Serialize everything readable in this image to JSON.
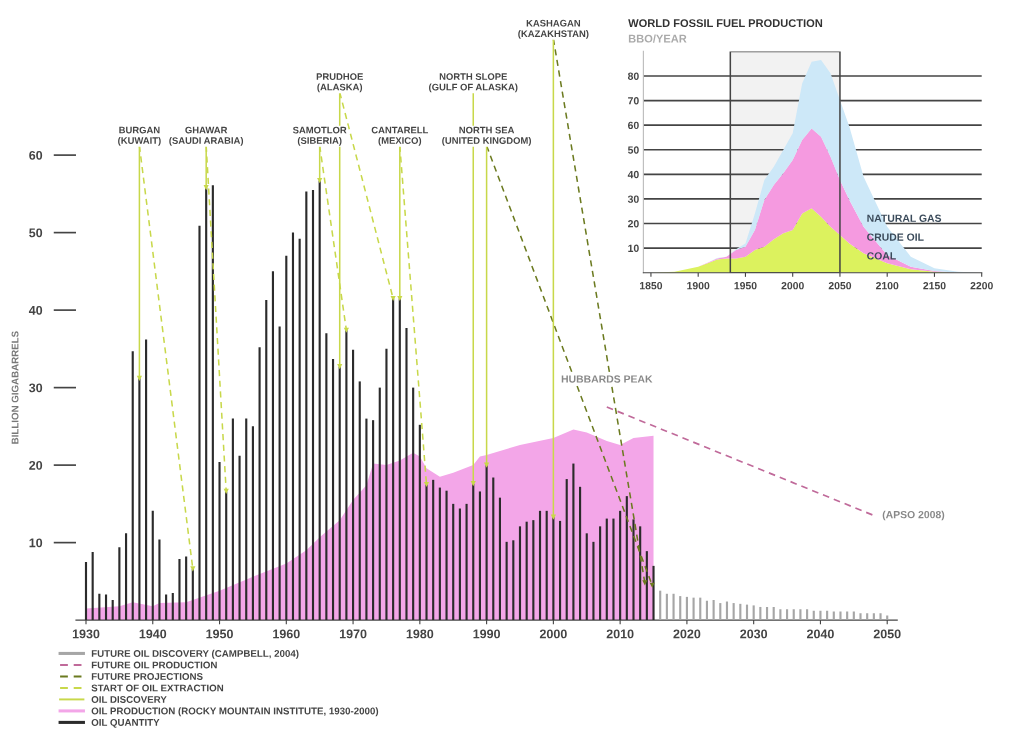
{
  "chart_data": [
    {
      "type": "bar",
      "ylabel": "BILLION GIGABARRELS",
      "xlim": [
        1928.5,
        2051.5
      ],
      "xticks": [
        1930,
        1940,
        1950,
        1960,
        1970,
        1980,
        1990,
        2000,
        2010,
        2020,
        2030,
        2040,
        2050
      ],
      "ylim": [
        0,
        60
      ],
      "yticks": [
        10,
        20,
        30,
        40,
        50,
        60
      ],
      "legend": "bottom left",
      "series": [
        {
          "name": "FUTURE OIL DISCOVERY (CAMPBELL, 2004)",
          "type": "bar",
          "color": "#a6a6a6",
          "x": [
            2016,
            2017,
            2018,
            2019,
            2020,
            2021,
            2022,
            2023,
            2024,
            2025,
            2026,
            2027,
            2028,
            2029,
            2030,
            2031,
            2032,
            2033,
            2034,
            2035,
            2036,
            2037,
            2038,
            2039,
            2040,
            2041,
            2042,
            2043,
            2044,
            2045,
            2046,
            2047,
            2048,
            2049,
            2050
          ],
          "values": [
            3.8,
            3.4,
            3.4,
            3.1,
            3.0,
            2.9,
            2.9,
            2.5,
            2.6,
            2.2,
            2.4,
            2.2,
            2.1,
            2.0,
            1.9,
            1.7,
            1.7,
            1.7,
            1.4,
            1.4,
            1.4,
            1.4,
            1.4,
            1.2,
            1.2,
            1.2,
            1.1,
            1.1,
            1.1,
            1.1,
            0.9,
            0.9,
            0.9,
            0.9,
            0.6
          ]
        },
        {
          "name": "FUTURE OIL PRODUCTION",
          "type": "line",
          "line_style": "dashed",
          "color": "#c06a9a",
          "x": [
            2008,
            2048
          ],
          "values": [
            27.5,
            13.5
          ]
        },
        {
          "name": "FUTURE PROJECTIONS",
          "type": "scatter",
          "marker": "triangle",
          "line_style": "dashed",
          "color": "#6b7a1f",
          "x": [
            2014.8,
            2013.7
          ],
          "values": [
            4.5,
            4.8
          ]
        },
        {
          "name": "START OF OIL EXTRACTION",
          "type": "scatter",
          "marker": "triangle",
          "line_style": "dashed",
          "color": "#c8d84a",
          "x": [
            1946,
            1951,
            1969,
            1976,
            1981
          ],
          "values": [
            6.6,
            16.6,
            37.4,
            41.5,
            17.5
          ]
        },
        {
          "name": "OIL DISCOVERY",
          "type": "scatter",
          "marker": "triangle",
          "line_style": "solid",
          "color": "#c8d84a",
          "x": [
            1938,
            1948,
            1965,
            1968,
            1977,
            1988,
            1990,
            2000
          ],
          "values": [
            31.2,
            55.8,
            56.7,
            32.7,
            41.5,
            17.6,
            20,
            13.3
          ]
        },
        {
          "name": "OIL PRODUCTION (ROCKY MOUNTAIN INSTITUTE, 1930-2000)",
          "type": "area",
          "color": "#f3a6e8",
          "x": [
            1930,
            1935,
            1937,
            1940,
            1941,
            1945,
            1950,
            1955,
            1960,
            1963,
            1965,
            1968,
            1970,
            1972,
            1973,
            1975,
            1977,
            1979,
            1980,
            1981,
            1983,
            1985,
            1988,
            1989,
            1990,
            1995,
            2000,
            2003,
            2005,
            2008,
            2010,
            2012,
            2015
          ],
          "values": [
            1.5,
            1.8,
            2.3,
            1.8,
            2.2,
            2.3,
            3.8,
            5.6,
            7.3,
            9,
            10.7,
            12.9,
            15.5,
            17.4,
            20.2,
            20,
            20.6,
            21.6,
            21.1,
            19.6,
            18.5,
            19,
            20,
            21.1,
            21.3,
            22.6,
            23.5,
            24.6,
            24.2,
            23.1,
            22.6,
            23.5,
            23.8
          ]
        },
        {
          "name": "OIL QUANTITY",
          "type": "bar",
          "color": "#2b2b2b",
          "x": [
            1930,
            1931,
            1932,
            1933,
            1934,
            1935,
            1936,
            1937,
            1938,
            1939,
            1940,
            1941,
            1942,
            1943,
            1944,
            1945,
            1946,
            1947,
            1948,
            1949,
            1950,
            1951,
            1952,
            1953,
            1954,
            1955,
            1956,
            1957,
            1958,
            1959,
            1960,
            1961,
            1962,
            1963,
            1964,
            1965,
            1966,
            1967,
            1968,
            1969,
            1970,
            1971,
            1972,
            1973,
            1974,
            1975,
            1976,
            1977,
            1978,
            1979,
            1980,
            1981,
            1982,
            1983,
            1984,
            1985,
            1986,
            1987,
            1988,
            1989,
            1990,
            1991,
            1992,
            1993,
            1994,
            1995,
            1996,
            1997,
            1998,
            1999,
            2000,
            2001,
            2002,
            2003,
            2004,
            2005,
            2006,
            2007,
            2008,
            2009,
            2010,
            2011,
            2012,
            2013,
            2014,
            2015
          ],
          "values": [
            7.5,
            8.8,
            3.4,
            3.3,
            2.6,
            9.4,
            11.2,
            34.7,
            31.2,
            36.2,
            14.1,
            10.4,
            3.3,
            3.5,
            7.9,
            8.2,
            6.6,
            50.9,
            55.8,
            56.1,
            20.4,
            16.6,
            26,
            21.2,
            26,
            25,
            35.2,
            41.3,
            45,
            37.9,
            47,
            50,
            49.2,
            55.3,
            55.5,
            56.7,
            37,
            33.7,
            32.7,
            37.4,
            34.9,
            30.8,
            26,
            25.8,
            30,
            35,
            41.5,
            41.5,
            37.7,
            30,
            25.2,
            17.5,
            18.1,
            17.1,
            16.7,
            15,
            14.4,
            15,
            17.6,
            16.6,
            20,
            18.4,
            15.8,
            10.1,
            10.3,
            12.1,
            12.7,
            12.9,
            14.1,
            14.1,
            13.3,
            12.8,
            18.2,
            20.2,
            17.2,
            11.2,
            10.1,
            12.1,
            13.1,
            13.1,
            14.1,
            16,
            13,
            12.1,
            8.9,
            7
          ]
        }
      ],
      "annotations": [
        {
          "text": "BURGAN\n(KUWAIT)",
          "x": 1938,
          "y": 31.2
        },
        {
          "text": "GHAWAR\n(SAUDI ARABIA)",
          "x": 1948,
          "y": 55.8
        },
        {
          "text": "SAMOTLOR\n(SIBERIA)",
          "x": 1965,
          "y": 56.7
        },
        {
          "text": "PRUDHOE\n(ALASKA)",
          "x": 1968,
          "y": 32.7
        },
        {
          "text": "CANTARELL\n(MEXICO)",
          "x": 1977,
          "y": 41.5
        },
        {
          "text": "NORTH SLOPE\n(GULF OF ALASKA)",
          "x": 1988,
          "y": 17.6
        },
        {
          "text": "NORTH SEA\n(UNITED KINGDOM)",
          "x": 1990,
          "y": 20
        },
        {
          "text": "KASHAGAN\n(KAZAKHSTAN)",
          "x": 2000,
          "y": 13.3
        },
        "HUBBARDS PEAK",
        "(APSO 2008)"
      ]
    },
    {
      "type": "area",
      "stacked": true,
      "title": "WORLD FOSSIL FUEL PRODUCTION",
      "subtitle": "BBO/YEAR",
      "xlim": [
        1842,
        2200
      ],
      "xticks": [
        1850,
        1900,
        1950,
        2000,
        2050,
        2100,
        2150,
        2200
      ],
      "ylim": [
        0,
        90
      ],
      "yticks": [
        10,
        20,
        30,
        40,
        50,
        60,
        70,
        80
      ],
      "grid": "y",
      "bands": [
        {
          "axis": "x",
          "from": 1934,
          "to": 2050,
          "color": "#444444"
        }
      ],
      "x": [
        1850,
        1875,
        1900,
        1910,
        1920,
        1930,
        1940,
        1950,
        1960,
        1970,
        1980,
        1990,
        2000,
        2010,
        2020,
        2030,
        2040,
        2050,
        2060,
        2075,
        2100,
        2125,
        2150,
        2175,
        2200
      ],
      "series": [
        {
          "name": "COAL",
          "color": "#dcf25e",
          "values": [
            0,
            0.4,
            2.4,
            3.8,
            5.4,
            5.8,
            5.8,
            6.5,
            9.2,
            10.6,
            13.6,
            16,
            17.4,
            24.1,
            26.2,
            22.8,
            18.7,
            15.3,
            11.9,
            7.9,
            3.8,
            1.4,
            0.4,
            0,
            0
          ]
        },
        {
          "name": "CRUDE OIL",
          "color": "#f59ae0",
          "values": [
            0,
            0,
            0,
            0.2,
            0.4,
            0.7,
            3.4,
            4.1,
            8.2,
            19,
            22.1,
            24.4,
            28.4,
            29.9,
            32.5,
            32.5,
            28.5,
            22.4,
            17.7,
            10.8,
            3.4,
            1,
            0.3,
            0,
            0
          ]
        },
        {
          "name": "NATURAL GAS",
          "color": "#cde8f8",
          "values": [
            0,
            0,
            0,
            0,
            0.2,
            0,
            0.3,
            1.3,
            6.7,
            8.1,
            7.4,
            9.5,
            10.9,
            23,
            27.1,
            31.2,
            33.9,
            32.5,
            29.8,
            20.3,
            11.5,
            4.1,
            1.1,
            0.4,
            0
          ]
        }
      ]
    }
  ]
}
